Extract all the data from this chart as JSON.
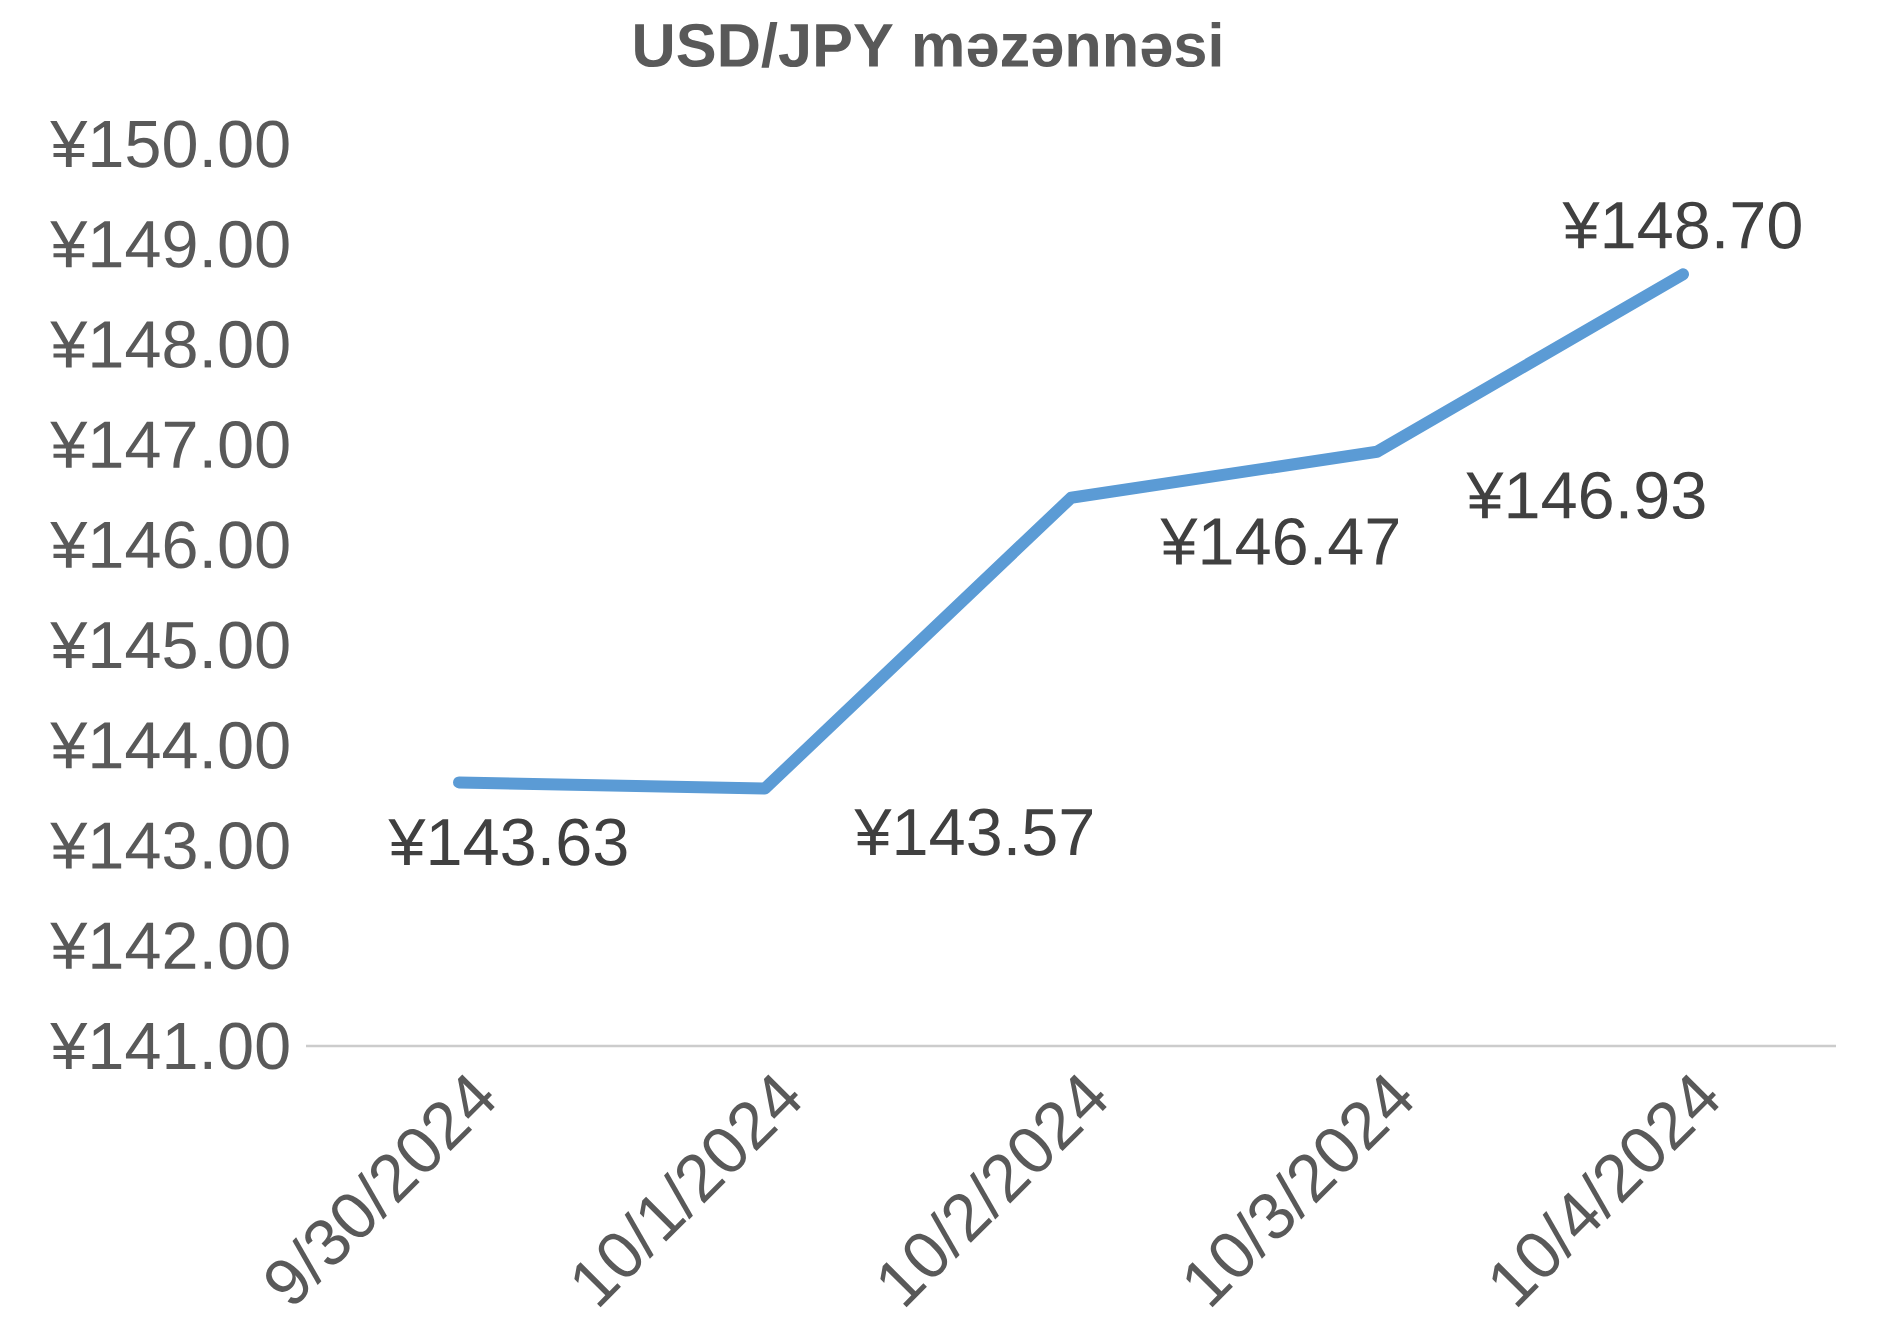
{
  "chart_data": {
    "type": "line",
    "title": "USD/JPY məzənnəsi",
    "categories": [
      "9/30/2024",
      "10/1/2024",
      "10/2/2024",
      "10/3/2024",
      "10/4/2024"
    ],
    "series": [
      {
        "color": "#5b9bd5",
        "values": [
          143.63,
          143.57,
          146.47,
          146.93,
          148.7
        ],
        "value_labels": [
          "¥143.63",
          "¥143.57",
          "¥146.47",
          "¥146.93",
          "¥148.70"
        ]
      }
    ],
    "ylim": [
      141,
      150
    ],
    "yticks": [
      {
        "value": 141,
        "label": "¥141.00"
      },
      {
        "value": 142,
        "label": "¥142.00"
      },
      {
        "value": 143,
        "label": "¥143.00"
      },
      {
        "value": 144,
        "label": "¥144.00"
      },
      {
        "value": 145,
        "label": "¥145.00"
      },
      {
        "value": 146,
        "label": "¥146.00"
      },
      {
        "value": 147,
        "label": "¥147.00"
      },
      {
        "value": 148,
        "label": "¥148.00"
      },
      {
        "value": 149,
        "label": "¥149.00"
      },
      {
        "value": 150,
        "label": "¥150.00"
      }
    ],
    "grid": false,
    "marker": "none",
    "line_style": "solid"
  }
}
